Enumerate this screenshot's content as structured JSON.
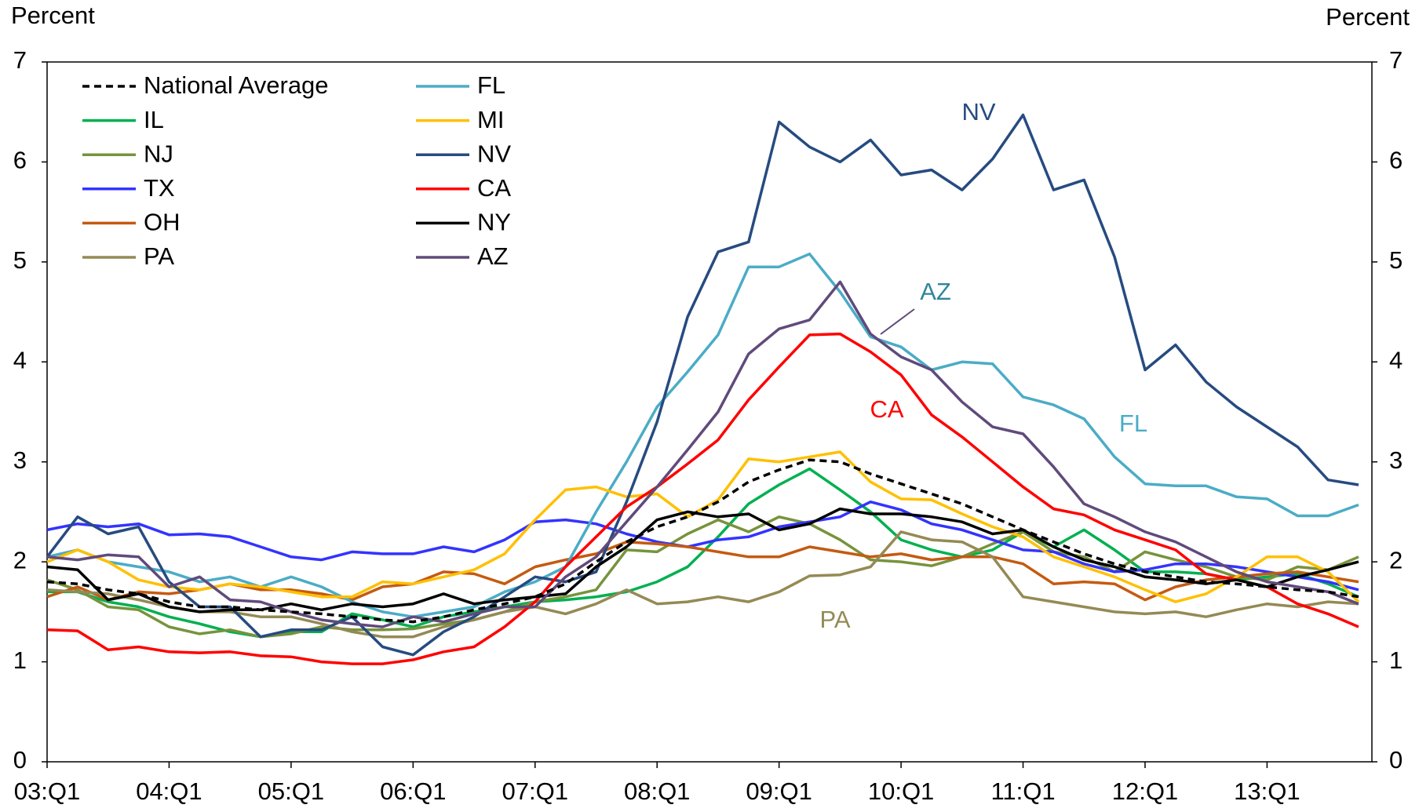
{
  "chart_data": {
    "type": "line",
    "ylabel": "Percent",
    "y2label": "Percent",
    "categories": [
      "03:Q1",
      null,
      null,
      null,
      "04:Q1",
      null,
      null,
      null,
      "05:Q1",
      null,
      null,
      null,
      "06:Q1",
      null,
      null,
      null,
      "07:Q1",
      null,
      null,
      null,
      "08:Q1",
      null,
      null,
      null,
      "09:Q1",
      null,
      null,
      null,
      "10:Q1",
      null,
      null,
      null,
      "11:Q1",
      null,
      null,
      null,
      "12:Q1",
      null,
      null,
      null,
      "13:Q1",
      null,
      null,
      null
    ],
    "ylim": [
      0,
      7
    ],
    "yticks": [
      0,
      1,
      2,
      3,
      4,
      5,
      6,
      7
    ],
    "y2lim": [
      0,
      7
    ],
    "y2ticks": [
      0,
      1,
      2,
      3,
      4,
      5,
      6,
      7
    ],
    "legend": "upper left",
    "series": [
      {
        "name": "National Average",
        "color": "#000000",
        "style": "dashed",
        "values": [
          1.8,
          1.78,
          1.72,
          1.68,
          1.6,
          1.55,
          1.55,
          1.52,
          1.5,
          1.48,
          1.45,
          1.42,
          1.4,
          1.45,
          1.52,
          1.58,
          1.65,
          1.78,
          2.0,
          2.2,
          2.35,
          2.45,
          2.6,
          2.8,
          2.92,
          3.02,
          3.0,
          2.88,
          2.78,
          2.68,
          2.58,
          2.45,
          2.32,
          2.2,
          2.08,
          1.98,
          1.9,
          1.85,
          1.8,
          1.78,
          1.75,
          1.72,
          1.7,
          1.65
        ]
      },
      {
        "name": "IL",
        "color": "#00b050",
        "values": [
          1.7,
          1.7,
          1.6,
          1.55,
          1.45,
          1.38,
          1.3,
          1.25,
          1.3,
          1.3,
          1.48,
          1.42,
          1.35,
          1.45,
          1.5,
          1.55,
          1.6,
          1.62,
          1.65,
          1.7,
          1.8,
          1.95,
          2.25,
          2.58,
          2.77,
          2.93,
          2.72,
          2.5,
          2.22,
          2.12,
          2.05,
          2.12,
          2.3,
          2.15,
          2.32,
          2.12,
          1.9,
          1.9,
          1.88,
          1.82,
          1.85,
          1.88,
          1.78,
          1.65
        ]
      },
      {
        "name": "NJ",
        "color": "#77933c",
        "values": [
          1.82,
          1.72,
          1.55,
          1.52,
          1.35,
          1.28,
          1.32,
          1.25,
          1.28,
          1.35,
          1.32,
          1.32,
          1.33,
          1.38,
          1.42,
          1.5,
          1.6,
          1.65,
          1.72,
          2.12,
          2.1,
          2.28,
          2.42,
          2.3,
          2.45,
          2.38,
          2.22,
          2.02,
          2.0,
          1.96,
          2.05,
          2.18,
          2.3,
          2.1,
          2.05,
          1.9,
          2.1,
          2.02,
          1.95,
          1.85,
          1.82,
          1.95,
          1.92,
          2.05
        ]
      },
      {
        "name": "TX",
        "color": "#3333ff",
        "values": [
          2.32,
          2.38,
          2.35,
          2.38,
          2.27,
          2.28,
          2.25,
          2.15,
          2.05,
          2.02,
          2.1,
          2.08,
          2.08,
          2.15,
          2.1,
          2.22,
          2.4,
          2.42,
          2.38,
          2.28,
          2.2,
          2.15,
          2.22,
          2.25,
          2.35,
          2.4,
          2.45,
          2.6,
          2.52,
          2.38,
          2.32,
          2.22,
          2.12,
          2.1,
          1.98,
          1.9,
          1.92,
          1.98,
          1.98,
          1.95,
          1.9,
          1.85,
          1.8,
          1.72
        ]
      },
      {
        "name": "OH",
        "color": "#c55a11",
        "values": [
          1.65,
          1.75,
          1.62,
          1.7,
          1.68,
          1.72,
          1.78,
          1.72,
          1.72,
          1.68,
          1.62,
          1.75,
          1.78,
          1.9,
          1.88,
          1.78,
          1.95,
          2.02,
          2.08,
          2.2,
          2.18,
          2.15,
          2.1,
          2.05,
          2.05,
          2.15,
          2.1,
          2.05,
          2.08,
          2.02,
          2.05,
          2.05,
          1.98,
          1.78,
          1.8,
          1.78,
          1.62,
          1.75,
          1.82,
          1.85,
          1.88,
          1.9,
          1.85,
          1.8
        ]
      },
      {
        "name": "PA",
        "color": "#948a54",
        "values": [
          1.72,
          1.7,
          1.68,
          1.62,
          1.55,
          1.5,
          1.5,
          1.45,
          1.45,
          1.38,
          1.3,
          1.25,
          1.25,
          1.35,
          1.42,
          1.5,
          1.55,
          1.48,
          1.58,
          1.72,
          1.58,
          1.6,
          1.65,
          1.6,
          1.7,
          1.86,
          1.87,
          1.95,
          2.3,
          2.22,
          2.2,
          2.05,
          1.65,
          1.6,
          1.55,
          1.5,
          1.48,
          1.5,
          1.45,
          1.52,
          1.58,
          1.55,
          1.6,
          1.58
        ]
      },
      {
        "name": "FL",
        "color": "#4bacc6",
        "values": [
          2.05,
          2.12,
          2.0,
          1.95,
          1.9,
          1.8,
          1.85,
          1.75,
          1.85,
          1.75,
          1.6,
          1.5,
          1.45,
          1.5,
          1.55,
          1.7,
          1.8,
          1.95,
          2.5,
          3.0,
          3.55,
          3.9,
          4.27,
          4.95,
          4.95,
          5.08,
          4.7,
          4.25,
          4.15,
          3.92,
          4.0,
          3.98,
          3.65,
          3.57,
          3.43,
          3.05,
          2.78,
          2.76,
          2.76,
          2.65,
          2.63,
          2.46,
          2.46,
          2.57
        ]
      },
      {
        "name": "MI",
        "color": "#ffc000",
        "values": [
          2.0,
          2.12,
          2.0,
          1.82,
          1.75,
          1.72,
          1.78,
          1.75,
          1.7,
          1.65,
          1.65,
          1.8,
          1.78,
          1.85,
          1.92,
          2.08,
          2.42,
          2.72,
          2.75,
          2.65,
          2.68,
          2.45,
          2.62,
          3.03,
          3.0,
          3.05,
          3.1,
          2.8,
          2.63,
          2.62,
          2.48,
          2.35,
          2.25,
          2.05,
          1.95,
          1.85,
          1.72,
          1.6,
          1.68,
          1.85,
          2.05,
          2.05,
          1.9,
          1.6
        ]
      },
      {
        "name": "NV",
        "color": "#264b80",
        "values": [
          2.05,
          2.45,
          2.28,
          2.35,
          1.8,
          1.55,
          1.55,
          1.25,
          1.32,
          1.32,
          1.45,
          1.15,
          1.07,
          1.3,
          1.45,
          1.65,
          1.85,
          1.8,
          1.9,
          2.6,
          3.4,
          4.45,
          5.1,
          5.2,
          6.4,
          6.15,
          6.0,
          6.22,
          5.87,
          5.92,
          5.72,
          6.03,
          6.47,
          5.72,
          5.82,
          5.05,
          3.92,
          4.17,
          3.8,
          3.55,
          3.35,
          3.15,
          2.82,
          2.77
        ]
      },
      {
        "name": "CA",
        "color": "#ff0000",
        "values": [
          1.32,
          1.31,
          1.12,
          1.15,
          1.1,
          1.09,
          1.1,
          1.06,
          1.05,
          1.0,
          0.98,
          0.98,
          1.02,
          1.1,
          1.15,
          1.35,
          1.6,
          1.95,
          2.25,
          2.55,
          2.75,
          2.98,
          3.22,
          3.62,
          3.95,
          4.27,
          4.28,
          4.1,
          3.87,
          3.47,
          3.25,
          3.0,
          2.75,
          2.53,
          2.47,
          2.32,
          2.22,
          2.12,
          1.88,
          1.82,
          1.75,
          1.58,
          1.48,
          1.35
        ]
      },
      {
        "name": "NY",
        "color": "#000000",
        "values": [
          1.95,
          1.92,
          1.62,
          1.68,
          1.55,
          1.5,
          1.52,
          1.52,
          1.58,
          1.52,
          1.58,
          1.55,
          1.58,
          1.68,
          1.58,
          1.62,
          1.65,
          1.68,
          1.95,
          2.15,
          2.42,
          2.5,
          2.45,
          2.48,
          2.32,
          2.38,
          2.53,
          2.48,
          2.48,
          2.45,
          2.4,
          2.28,
          2.32,
          2.15,
          2.02,
          1.95,
          1.85,
          1.82,
          1.78,
          1.82,
          1.75,
          1.85,
          1.92,
          2.0
        ]
      },
      {
        "name": "AZ",
        "color": "#604a7b",
        "values": [
          2.05,
          2.02,
          2.07,
          2.05,
          1.75,
          1.85,
          1.62,
          1.6,
          1.5,
          1.42,
          1.38,
          1.35,
          1.45,
          1.4,
          1.48,
          1.55,
          1.55,
          1.85,
          2.05,
          2.4,
          2.75,
          3.12,
          3.5,
          4.08,
          4.33,
          4.42,
          4.8,
          4.28,
          4.05,
          3.92,
          3.6,
          3.35,
          3.28,
          2.95,
          2.58,
          2.45,
          2.3,
          2.2,
          2.05,
          1.9,
          1.8,
          1.75,
          1.7,
          1.58
        ]
      }
    ],
    "annotations": [
      {
        "text": "NV",
        "color": "#264b80"
      },
      {
        "text": "AZ",
        "color": "#31859c"
      },
      {
        "text": "CA",
        "color": "#ff0000"
      },
      {
        "text": "FL",
        "color": "#4bacc6"
      },
      {
        "text": "PA",
        "color": "#948a54"
      }
    ]
  }
}
